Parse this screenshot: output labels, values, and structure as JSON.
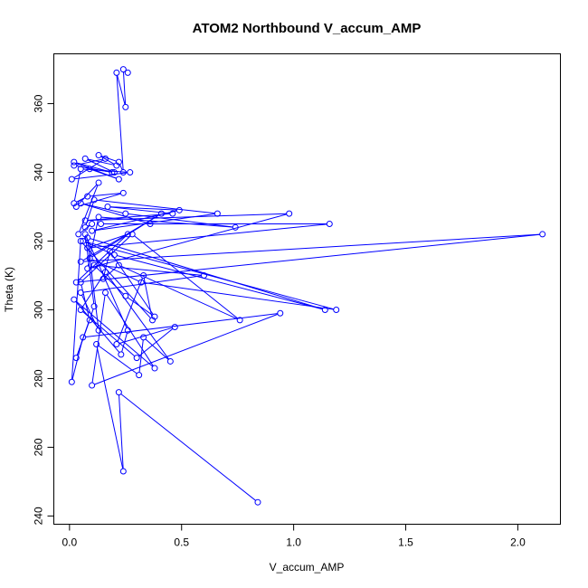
{
  "chart_data": {
    "type": "line",
    "title": "ATOM2 Northbound V_accum_AMP",
    "xlabel": "V_accum_AMP",
    "ylabel": "Theta (K)",
    "xlim": [
      -0.07,
      2.19
    ],
    "ylim": [
      237.6,
      374.5
    ],
    "xticks": [
      0.0,
      0.5,
      1.0,
      1.5,
      2.0
    ],
    "xtick_labels": [
      "0.0",
      "0.5",
      "1.0",
      "1.5",
      "2.0"
    ],
    "yticks": [
      240,
      260,
      280,
      300,
      320,
      340,
      360
    ],
    "ytick_labels": [
      "240",
      "260",
      "280",
      "300",
      "320",
      "340",
      "360"
    ],
    "grid": false,
    "legend": "none",
    "color": "#0000ff",
    "series": [
      {
        "x": [
          0.84,
          0.22,
          0.24,
          0.12,
          0.31,
          0.33,
          0.45,
          0.16,
          0.05,
          0.3,
          0.47,
          0.21,
          0.33,
          0.37,
          0.05,
          0.01,
          0.06,
          0.94,
          0.1,
          0.16,
          0.38,
          0.02,
          0.23,
          0.26,
          0.07,
          0.11,
          0.03,
          0.09,
          0.05,
          0.28,
          0.76,
          0.22,
          0.15,
          0.18,
          0.38,
          0.25,
          0.11,
          0.6,
          0.05,
          0.13,
          0.08,
          1.14,
          0.2,
          0.06,
          1.19,
          0.32,
          0.09,
          0.41,
          0.05,
          2.11,
          0.03,
          0.26,
          0.08,
          1.16,
          0.14,
          0.36,
          0.05,
          0.25,
          0.74,
          0.13,
          0.08,
          0.98,
          0.07,
          0.46,
          0.17,
          0.49,
          0.1,
          0.66,
          0.11,
          0.07,
          0.1,
          0.04,
          0.13,
          0.03,
          0.24,
          0.08,
          0.02,
          0.05,
          0.27,
          0.01,
          0.16,
          0.02,
          0.19,
          0.02,
          0.22,
          0.09,
          0.2,
          0.07,
          0.21,
          0.13,
          0.22,
          0.24,
          0.21,
          0.25,
          0.24,
          0.26
        ],
        "y": [
          244,
          276,
          253,
          290,
          281,
          292,
          285,
          311,
          300,
          286,
          295,
          290,
          310,
          297,
          320,
          279,
          292,
          299,
          278,
          305,
          283,
          303,
          287,
          294,
          322,
          301,
          286,
          297,
          308,
          322,
          297,
          313,
          309,
          317,
          298,
          304,
          313,
          310,
          305,
          294,
          321,
          300,
          316,
          320,
          300,
          308,
          315,
          328,
          314,
          322,
          308,
          322,
          318,
          325,
          325,
          325,
          331,
          328,
          324,
          327,
          312,
          328,
          326,
          328,
          330,
          329,
          323,
          328,
          332,
          324,
          325,
          322,
          337,
          330,
          334,
          333,
          331,
          341,
          340,
          338,
          344,
          342,
          340,
          343,
          338,
          341,
          340,
          344,
          342,
          345,
          343,
          340,
          369,
          359,
          370,
          369
        ]
      }
    ]
  }
}
